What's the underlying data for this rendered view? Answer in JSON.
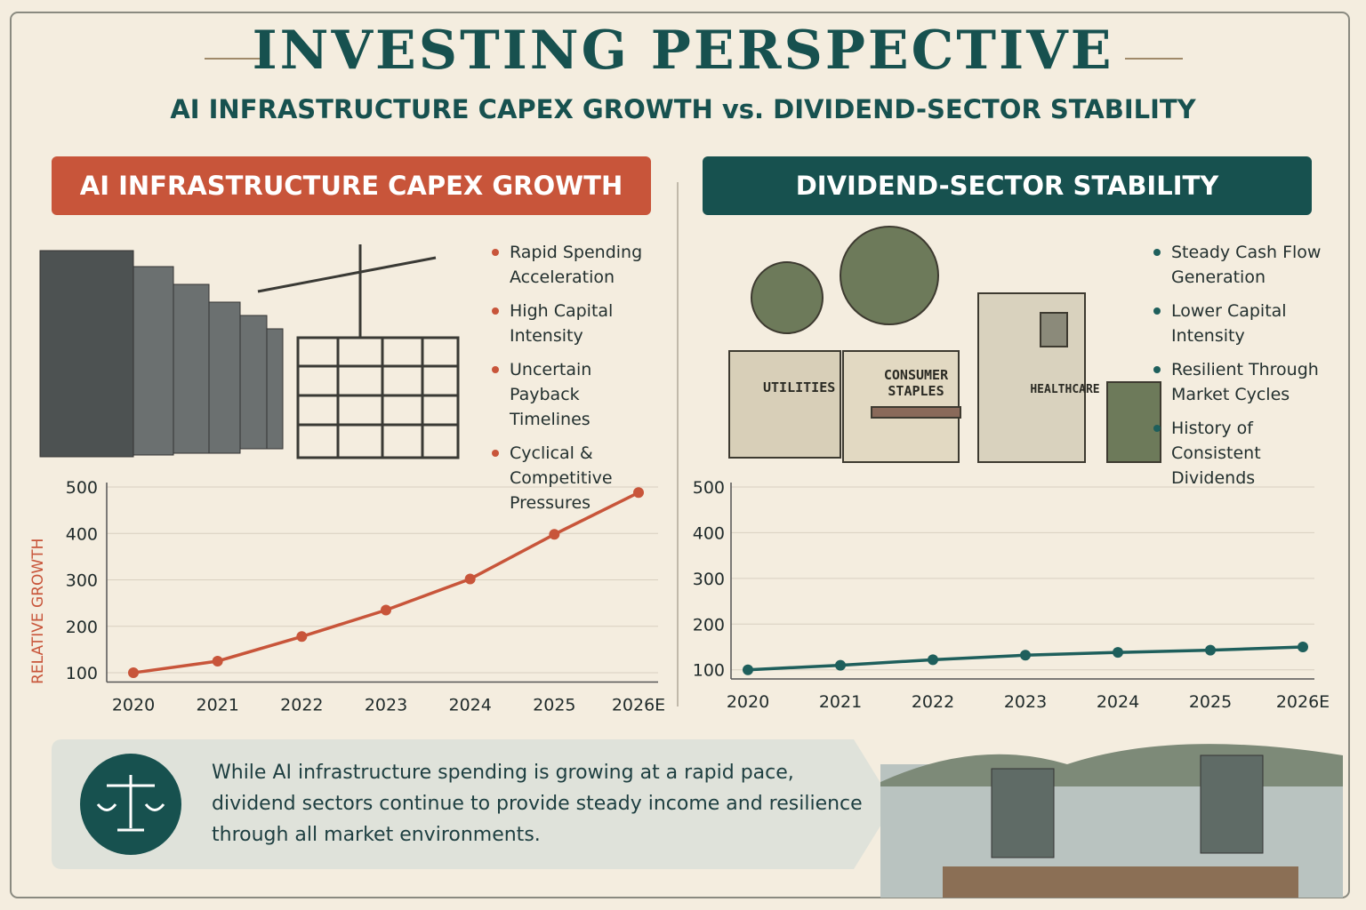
{
  "title": "INVESTING PERSPECTIVE",
  "subtitle": "AI INFRASTRUCTURE CAPEX GROWTH vs. DIVIDEND-SECTOR STABILITY",
  "panels": [
    {
      "heading": "AI INFRASTRUCTURE CAPEX GROWTH",
      "bullets": [
        "Rapid Spending Acceleration",
        "High Capital Intensity",
        "Uncertain Payback Timelines",
        "Cyclical & Competitive Pressures"
      ]
    },
    {
      "heading": "DIVIDEND-SECTOR STABILITY",
      "bullets": [
        "Steady Cash Flow Generation",
        "Lower Capital Intensity",
        "Resilient Through Market Cycles",
        "History of Consistent Dividends"
      ]
    }
  ],
  "illustration_labels": [
    "UTILITIES",
    "CONSUMER STAPLES",
    "HEALTHCARE"
  ],
  "chart_data": [
    {
      "type": "line",
      "ylabel": "RELATIVE GROWTH",
      "categories": [
        "2020",
        "2021",
        "2022",
        "2023",
        "2024",
        "2025",
        "2026E"
      ],
      "values": [
        100,
        125,
        178,
        235,
        302,
        398,
        488
      ],
      "color": "#c8553a",
      "ylim": [
        80,
        500
      ],
      "yticks": [
        100,
        200,
        300,
        400,
        500
      ],
      "grid": true
    },
    {
      "type": "line",
      "categories": [
        "2020",
        "2021",
        "2022",
        "2023",
        "2024",
        "2025",
        "2026E"
      ],
      "values": [
        100,
        110,
        122,
        132,
        138,
        143,
        150
      ],
      "color": "#1e5f5c",
      "ylim": [
        80,
        500
      ],
      "yticks": [
        100,
        200,
        300,
        400,
        500
      ],
      "grid": true
    }
  ],
  "summary": [
    "While AI infrastructure spending is growing at a rapid pace,",
    "dividend sectors continue to provide steady income and resilience",
    "through all market environments."
  ]
}
